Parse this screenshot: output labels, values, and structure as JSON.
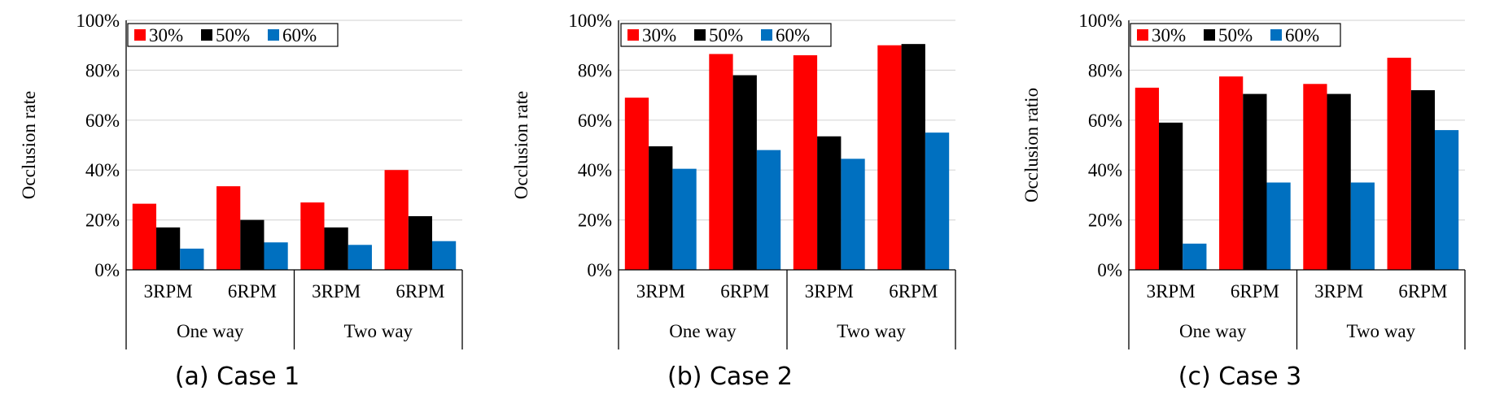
{
  "colors": {
    "s30": "#ff0000",
    "s50": "#000000",
    "s60": "#0070c0",
    "grid": "#d9d9d9",
    "axis": "#000000"
  },
  "chart_data": [
    {
      "type": "bar",
      "caption": "(a) Case 1",
      "ylabel": "Occlusion rate",
      "ylim": [
        0,
        100
      ],
      "yticks": [
        0,
        20,
        40,
        60,
        80,
        100
      ],
      "ytick_labels": [
        "0%",
        "20%",
        "40%",
        "60%",
        "80%",
        "100%"
      ],
      "legend_position": "top-left",
      "categories": [
        "3RPM",
        "6RPM",
        "3RPM",
        "6RPM"
      ],
      "groups": [
        {
          "label": "One way",
          "span": 2
        },
        {
          "label": "Two way",
          "span": 2
        }
      ],
      "series": [
        {
          "name": "30%",
          "color_key": "s30",
          "values": [
            26.5,
            33.5,
            27,
            40
          ]
        },
        {
          "name": "50%",
          "color_key": "s50",
          "values": [
            17,
            20,
            17,
            21.5
          ]
        },
        {
          "name": "60%",
          "color_key": "s60",
          "values": [
            8.5,
            11,
            10,
            11.5
          ]
        }
      ]
    },
    {
      "type": "bar",
      "caption": "(b) Case 2",
      "ylabel": "Occlusion rate",
      "ylim": [
        0,
        100
      ],
      "yticks": [
        0,
        20,
        40,
        60,
        80,
        100
      ],
      "ytick_labels": [
        "0%",
        "20%",
        "40%",
        "60%",
        "80%",
        "100%"
      ],
      "legend_position": "top-right",
      "categories": [
        "3RPM",
        "6RPM",
        "3RPM",
        "6RPM"
      ],
      "groups": [
        {
          "label": "One way",
          "span": 2
        },
        {
          "label": "Two way",
          "span": 2
        }
      ],
      "series": [
        {
          "name": "30%",
          "color_key": "s30",
          "values": [
            69,
            86.5,
            86,
            90
          ]
        },
        {
          "name": "50%",
          "color_key": "s50",
          "values": [
            49.5,
            78,
            53.5,
            90.5
          ]
        },
        {
          "name": "60%",
          "color_key": "s60",
          "values": [
            40.5,
            48,
            44.5,
            55
          ]
        }
      ]
    },
    {
      "type": "bar",
      "caption": "(c) Case 3",
      "ylabel": "Occlusion ratio",
      "ylim": [
        0,
        100
      ],
      "yticks": [
        0,
        20,
        40,
        60,
        80,
        100
      ],
      "ytick_labels": [
        "0%",
        "20%",
        "40%",
        "60%",
        "80%",
        "100%"
      ],
      "legend_position": "top-left",
      "categories": [
        "3RPM",
        "6RPM",
        "3RPM",
        "6RPM"
      ],
      "groups": [
        {
          "label": "One way",
          "span": 2
        },
        {
          "label": "Two way",
          "span": 2
        }
      ],
      "series": [
        {
          "name": "30%",
          "color_key": "s30",
          "values": [
            73,
            77.5,
            74.5,
            85
          ]
        },
        {
          "name": "50%",
          "color_key": "s50",
          "values": [
            59,
            70.5,
            70.5,
            72
          ]
        },
        {
          "name": "60%",
          "color_key": "s60",
          "values": [
            10.5,
            35,
            35,
            56
          ]
        }
      ]
    }
  ]
}
